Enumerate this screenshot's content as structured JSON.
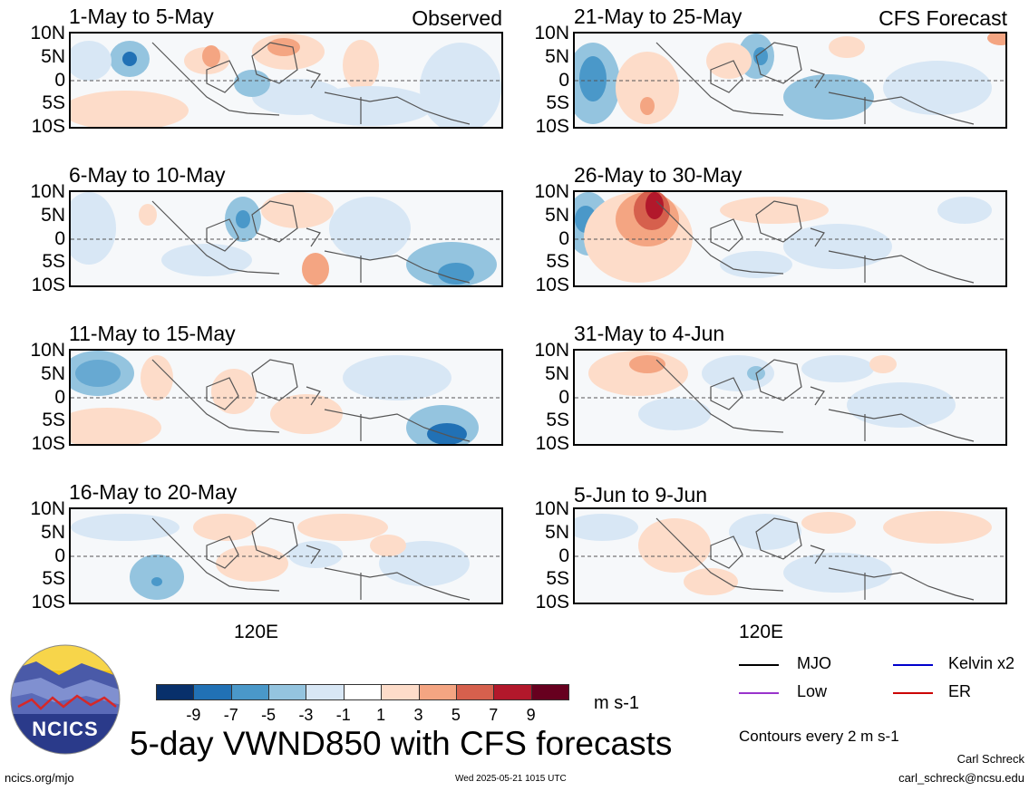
{
  "panels_left": [
    {
      "title": "1-May to 5-May",
      "tag": "Observed"
    },
    {
      "title": "6-May to 10-May",
      "tag": ""
    },
    {
      "title": "11-May to 15-May",
      "tag": ""
    },
    {
      "title": "16-May to 20-May",
      "tag": ""
    }
  ],
  "panels_right": [
    {
      "title": "21-May to 25-May",
      "tag": "CFS Forecast"
    },
    {
      "title": "26-May to 30-May",
      "tag": ""
    },
    {
      "title": "31-May to 4-Jun",
      "tag": ""
    },
    {
      "title": "5-Jun to 9-Jun",
      "tag": ""
    }
  ],
  "lat_labels": [
    "10N",
    "5N",
    "0",
    "5S",
    "10S"
  ],
  "lon_label": "120E",
  "colorbar": {
    "ticks": [
      "-9",
      "-7",
      "-5",
      "-3",
      "-1",
      "1",
      "3",
      "5",
      "7",
      "9"
    ],
    "colors": [
      "#08306b",
      "#2171b5",
      "#4a98c9",
      "#94c4df",
      "#d8e7f5",
      "#ffffff",
      "#fddcc9",
      "#f4a582",
      "#d6604d",
      "#b2182b",
      "#67001f"
    ],
    "units": "m s-1"
  },
  "legend": [
    {
      "label": "MJO",
      "color": "#000000"
    },
    {
      "label": "Kelvin x2",
      "color": "#0000cc"
    },
    {
      "label": "Low",
      "color": "#9933cc"
    },
    {
      "label": "ER",
      "color": "#cc0000"
    }
  ],
  "contour_note": "Contours every 2 m s-1",
  "main_title": "5-day VWND850 with CFS forecasts",
  "logo_text": "NCICS",
  "footer": {
    "url": "ncics.org/mjo",
    "timestamp": "Wed 2025-05-21 1015 UTC",
    "author": "Carl Schreck",
    "email": "carl_schreck@ncsu.edu"
  }
}
